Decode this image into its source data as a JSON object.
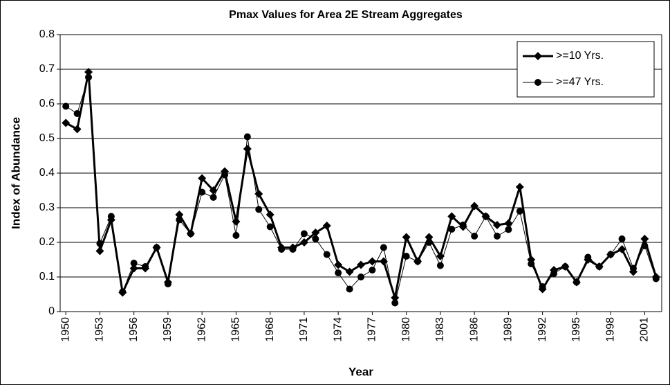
{
  "chart_data": {
    "type": "line",
    "title": "Pmax Values for Area 2E Stream Aggregates",
    "x_label": "Year",
    "y_label": "Index of Abundance",
    "categories": [
      "1950",
      null,
      null,
      "1953",
      null,
      null,
      "1956",
      null,
      null,
      "1959",
      null,
      null,
      "1962",
      null,
      null,
      "1965",
      null,
      null,
      "1968",
      null,
      null,
      "1971",
      null,
      null,
      "1974",
      null,
      null,
      "1977",
      null,
      null,
      "1980",
      null,
      null,
      "1983",
      null,
      null,
      "1986",
      null,
      null,
      "1989",
      null,
      null,
      "1992",
      null,
      null,
      "1995",
      null,
      null,
      "1998",
      null,
      null,
      "2001",
      null
    ],
    "series": [
      {
        "name": ">=10 Yrs.",
        "color": "#000000",
        "marker": "diamond",
        "line_width": 3,
        "values": [
          0.545,
          0.527,
          0.692,
          0.175,
          0.265,
          0.055,
          0.125,
          0.125,
          0.185,
          0.085,
          0.28,
          0.225,
          0.385,
          0.35,
          0.405,
          0.26,
          0.47,
          0.34,
          0.28,
          0.185,
          0.185,
          0.2,
          0.228,
          0.248,
          0.135,
          0.115,
          0.135,
          0.145,
          0.145,
          0.04,
          0.215,
          0.145,
          0.215,
          0.16,
          0.275,
          0.245,
          0.305,
          0.275,
          0.25,
          0.255,
          0.36,
          0.15,
          0.065,
          0.12,
          0.13,
          0.085,
          0.15,
          0.13,
          0.165,
          0.18,
          0.115,
          0.21,
          0.1
        ]
      },
      {
        "name": ">=47 Yrs.",
        "color": "#000000",
        "marker": "circle",
        "line_width": 1,
        "values": [
          0.593,
          0.572,
          0.677,
          0.197,
          0.275,
          0.057,
          0.14,
          0.13,
          0.185,
          0.08,
          0.265,
          0.225,
          0.345,
          0.33,
          0.395,
          0.22,
          0.505,
          0.295,
          0.245,
          0.18,
          0.18,
          0.225,
          0.21,
          0.165,
          0.112,
          0.065,
          0.1,
          0.12,
          0.185,
          0.025,
          0.16,
          0.145,
          0.2,
          0.133,
          0.238,
          0.25,
          0.218,
          0.275,
          0.218,
          0.237,
          0.29,
          0.138,
          0.072,
          0.11,
          0.13,
          0.085,
          0.157,
          0.13,
          0.165,
          0.21,
          0.125,
          0.19,
          0.095
        ]
      }
    ],
    "ylim": [
      0,
      0.8
    ],
    "yticks": [
      0,
      0.1,
      0.2,
      0.3,
      0.4,
      0.5,
      0.6,
      0.7,
      0.8
    ],
    "grid": true,
    "legend": "top-right"
  }
}
